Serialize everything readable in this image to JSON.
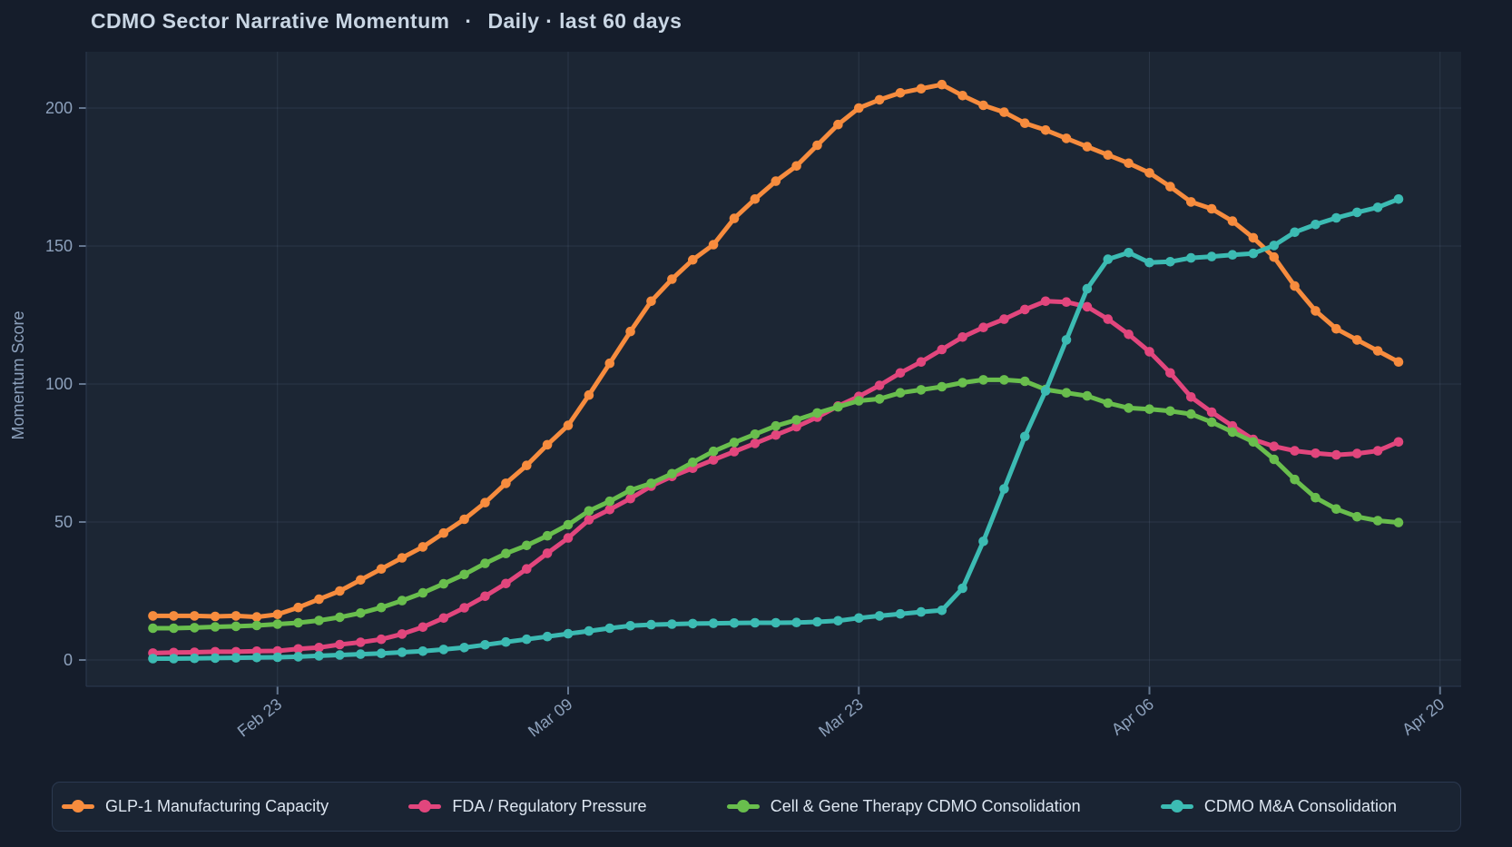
{
  "title": {
    "main": "CDMO Sector Narrative Momentum",
    "separator": "·",
    "sub": "Daily · last 60 days"
  },
  "y_axis": {
    "label": "Momentum Score",
    "ticks": [
      0,
      50,
      100,
      150,
      200
    ]
  },
  "x_axis": {
    "ticks": [
      {
        "label": "Feb 23",
        "day": 6
      },
      {
        "label": "Mar 09",
        "day": 20
      },
      {
        "label": "Mar 23",
        "day": 34
      },
      {
        "label": "Apr 06",
        "day": 48
      },
      {
        "label": "Apr 20",
        "day": 62
      }
    ]
  },
  "colors": {
    "page_bg": "#151d2b",
    "plot_bg": "#1c2634",
    "grid": "rgba(141,164,199,0.13)",
    "axis_edge": "#2b3950",
    "tick_mark": "#64768f",
    "tick_label": "#8da1bc",
    "axis_title": "#8da1bc",
    "title_text": "#c9d6e4",
    "legend_bg": "#1a2433",
    "legend_border": "#2b3950",
    "legend_text": "#dde6f1"
  },
  "chart_data": {
    "type": "line",
    "title": "CDMO Sector Narrative Momentum · Daily · last 60 days",
    "xlabel": "",
    "ylabel": "Momentum Score",
    "ylim": [
      0,
      220
    ],
    "grid": true,
    "legend_position": "bottom",
    "markers": true,
    "x": [
      "Feb 17",
      "Feb 18",
      "Feb 19",
      "Feb 20",
      "Feb 21",
      "Feb 22",
      "Feb 23",
      "Feb 24",
      "Feb 25",
      "Feb 26",
      "Feb 27",
      "Feb 28",
      "Mar 01",
      "Mar 02",
      "Mar 03",
      "Mar 04",
      "Mar 05",
      "Mar 06",
      "Mar 07",
      "Mar 08",
      "Mar 09",
      "Mar 10",
      "Mar 11",
      "Mar 12",
      "Mar 13",
      "Mar 14",
      "Mar 15",
      "Mar 16",
      "Mar 17",
      "Mar 18",
      "Mar 19",
      "Mar 20",
      "Mar 21",
      "Mar 22",
      "Mar 23",
      "Mar 24",
      "Mar 25",
      "Mar 26",
      "Mar 27",
      "Mar 28",
      "Mar 29",
      "Mar 30",
      "Mar 31",
      "Apr 01",
      "Apr 02",
      "Apr 03",
      "Apr 04",
      "Apr 05",
      "Apr 06",
      "Apr 07",
      "Apr 08",
      "Apr 09",
      "Apr 10",
      "Apr 11",
      "Apr 12",
      "Apr 13",
      "Apr 14",
      "Apr 15",
      "Apr 16",
      "Apr 17",
      "Apr 18"
    ],
    "series": [
      {
        "name": "GLP-1 Manufacturing Capacity",
        "color": "#f78c3e",
        "values": [
          16,
          16,
          16,
          15.8,
          16,
          15.6,
          16.5,
          19,
          22,
          25,
          29,
          33,
          37,
          41,
          46,
          51,
          57,
          64,
          70.5,
          78,
          85,
          96,
          107.5,
          119,
          130,
          138,
          145,
          150.5,
          160,
          167,
          173.5,
          179,
          186.5,
          194,
          200,
          203,
          205.5,
          207,
          208.5,
          204.5,
          201,
          198.5,
          194.5,
          192,
          189,
          186,
          183,
          180,
          176.5,
          171.5,
          166,
          163.5,
          159,
          153,
          146,
          135.5,
          126.5,
          120,
          116,
          112,
          108
        ]
      },
      {
        "name": "FDA / Regulatory Pressure",
        "color": "#e2467d",
        "values": [
          2.5,
          2.7,
          2.8,
          3,
          3,
          3.2,
          3.3,
          4,
          4.5,
          5.6,
          6.4,
          7.5,
          9.4,
          11.9,
          15.2,
          18.9,
          23.1,
          27.7,
          33,
          38.7,
          44.2,
          50.8,
          54.5,
          58.5,
          63,
          66.5,
          69.5,
          72.5,
          75.5,
          78.5,
          81.5,
          84.5,
          88,
          92,
          95.5,
          99.5,
          104,
          108,
          112.5,
          117,
          120.5,
          123.5,
          127,
          130,
          129.7,
          128,
          123.5,
          118,
          111.7,
          104,
          95.3,
          89.8,
          84.8,
          79.9,
          77.4,
          75.8,
          74.9,
          74.3,
          74.8,
          75.8,
          79
        ]
      },
      {
        "name": "Cell & Gene Therapy CDMO Consolidation",
        "color": "#69be4d",
        "values": [
          11.5,
          11.5,
          11.7,
          12,
          12.2,
          12.5,
          13,
          13.5,
          14.3,
          15.5,
          17,
          19,
          21.5,
          24.3,
          27.6,
          31,
          35,
          38.6,
          41.5,
          45,
          49,
          54,
          57.5,
          61.5,
          64,
          67.5,
          71.6,
          75.6,
          78.8,
          81.8,
          84.8,
          87,
          89.5,
          91.7,
          93.9,
          94.6,
          96.8,
          97.9,
          99,
          100.5,
          101.5,
          101.5,
          101,
          98,
          96.8,
          95.7,
          93.1,
          91.3,
          90.9,
          90.2,
          89.1,
          86.2,
          82.6,
          79,
          72.7,
          65.4,
          58.8,
          54.7,
          51.9,
          50.5,
          49.8
        ]
      },
      {
        "name": "CDMO M&A Consolidation",
        "color": "#3cbbb3",
        "values": [
          0.5,
          0.5,
          0.6,
          0.7,
          0.8,
          0.9,
          1,
          1.2,
          1.5,
          1.8,
          2.1,
          2.4,
          2.8,
          3.2,
          3.8,
          4.5,
          5.5,
          6.5,
          7.5,
          8.5,
          9.5,
          10.5,
          11.5,
          12.4,
          12.8,
          13,
          13.2,
          13.3,
          13.4,
          13.5,
          13.5,
          13.6,
          13.8,
          14.2,
          15.2,
          16,
          16.7,
          17.4,
          18,
          26,
          43,
          62,
          81,
          97.5,
          116,
          134.5,
          145.2,
          147.6,
          144,
          144.3,
          145.7,
          146.2,
          146.8,
          147.3,
          150.2,
          155,
          157.8,
          160.2,
          162.2,
          164,
          167
        ]
      }
    ]
  }
}
